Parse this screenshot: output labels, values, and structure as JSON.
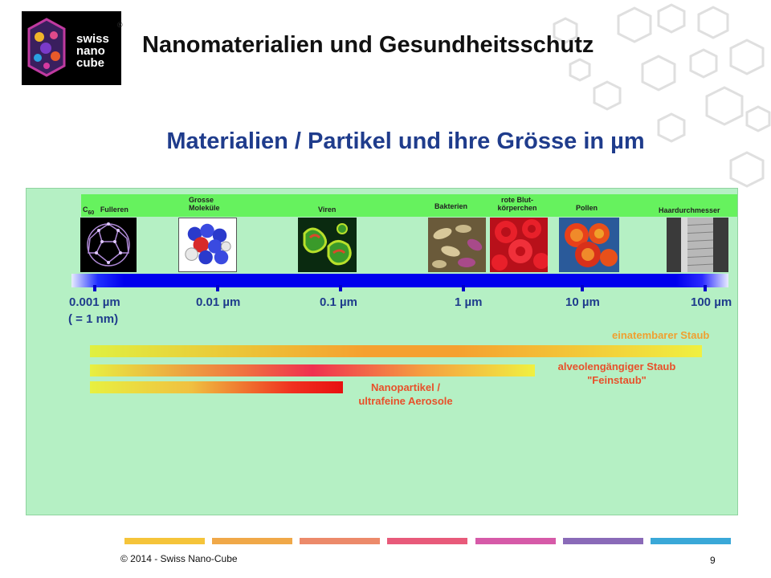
{
  "colors": {
    "title": "#111111",
    "subtitle": "#1f3c8c",
    "panel": "#b5f0c4",
    "band": "#66f25e",
    "scale": "#0000ee",
    "range_label": "#e8502a"
  },
  "header": {
    "logo": {
      "line1": "swiss",
      "line2": "nano",
      "line3": "cube",
      "reg": "®"
    },
    "title": "Nanomaterialien und Gesundheitsschutz"
  },
  "subtitle": "Materialien / Partikel und ihre Grösse in µm",
  "categories": {
    "fullerene_c": "C",
    "fullerene_sub": "60",
    "fullerene_label": "Fulleren",
    "molecules": [
      "Grosse",
      "Moleküle"
    ],
    "viruses": "Viren",
    "bacteria": "Bakterien",
    "blood": [
      "rote Blut-",
      "körperchen"
    ],
    "pollen": "Pollen",
    "hair": "Haardurchmesser"
  },
  "images": [
    {
      "name": "fullerene-image",
      "icon": "fullerene"
    },
    {
      "name": "large-molecule-image",
      "icon": "molecule"
    },
    {
      "name": "virus-image",
      "icon": "virus"
    },
    {
      "name": "bacteria-image",
      "icon": "bacteria"
    },
    {
      "name": "red-blood-cell-image",
      "icon": "blood-cells"
    },
    {
      "name": "pollen-image",
      "icon": "pollen"
    },
    {
      "name": "hair-image",
      "icon": "hair"
    }
  ],
  "scale": {
    "ticks": [
      "0.001 µm",
      "0.01 µm",
      "0.1 µm",
      "1 µm",
      "10 µm",
      "100 µm"
    ],
    "note": "( = 1 nm)"
  },
  "ranges": {
    "inhalable": "einatembarer Staub",
    "alveolar": [
      "alveolengängiger Staub",
      "\"Feinstaub\""
    ],
    "nano": [
      "Nanopartikel /",
      "ultrafeine Aerosole"
    ]
  },
  "footer": {
    "copyright": "© 2014 - Swiss Nano-Cube",
    "page": "9"
  }
}
